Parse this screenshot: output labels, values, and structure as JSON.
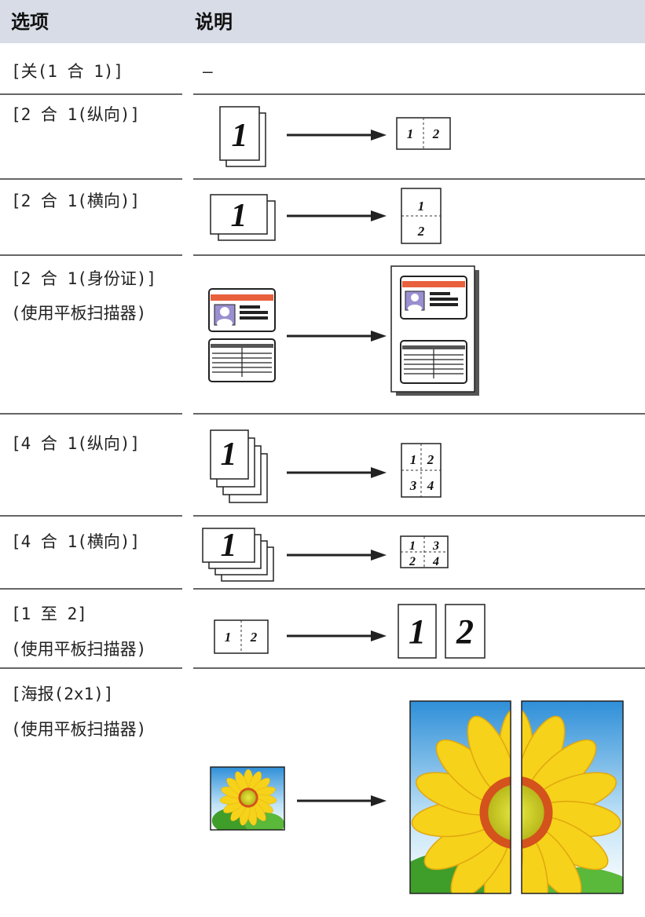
{
  "header": {
    "option": "选项",
    "description": "说明"
  },
  "rows": [
    {
      "option": [
        "[关(1 合 1)]"
      ],
      "description": "–"
    },
    {
      "option": [
        "[2 合 1(纵向)]"
      ],
      "figure_labels": [
        "1",
        "1",
        "2"
      ]
    },
    {
      "option": [
        "[2 合 1(横向)]"
      ],
      "figure_labels": [
        "1",
        "1",
        "2"
      ]
    },
    {
      "option": [
        "[2 合 1(身份证)]",
        "(使用平板扫描器)"
      ]
    },
    {
      "option": [
        "[4 合 1(纵向)]"
      ],
      "figure_labels": [
        "1",
        "1",
        "2",
        "3",
        "4"
      ]
    },
    {
      "option": [
        "[4 合 1(横向)]"
      ],
      "figure_labels": [
        "1",
        "1",
        "3",
        "2",
        "4"
      ]
    },
    {
      "option": [
        "[1 至 2]",
        "(使用平板扫描器)"
      ],
      "figure_labels": [
        "1",
        "2",
        "1",
        "2"
      ]
    },
    {
      "option": [
        "[海报(2x1)]",
        "(使用平板扫描器)"
      ]
    }
  ]
}
